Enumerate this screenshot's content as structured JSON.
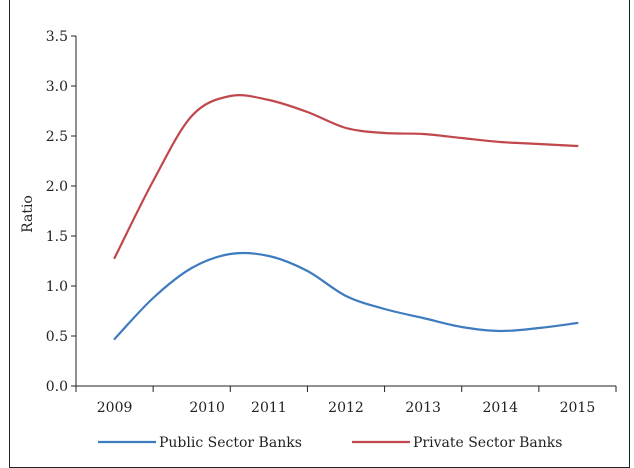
{
  "chart_data": {
    "type": "line",
    "title": "",
    "xlabel": "",
    "ylabel": "Ratio",
    "categories": [
      "2009",
      "2010",
      "2011",
      "2012",
      "2013",
      "2014",
      "2015"
    ],
    "x_positions": [
      0,
      1.2,
      2.0,
      3.0,
      4.0,
      5.0,
      6.0
    ],
    "ylim": [
      0.0,
      3.5
    ],
    "yticks": [
      "0.0",
      "0.5",
      "1.0",
      "1.5",
      "2.0",
      "2.5",
      "3.0",
      "3.5"
    ],
    "grid": false,
    "legend_position": "bottom",
    "series": [
      {
        "name": "Public Sector Banks",
        "color": "#3e7bbf",
        "points": [
          [
            0,
            0.47
          ],
          [
            0.5,
            0.88
          ],
          [
            1.0,
            1.18
          ],
          [
            1.5,
            1.32
          ],
          [
            2.0,
            1.3
          ],
          [
            2.5,
            1.15
          ],
          [
            3.0,
            0.9
          ],
          [
            3.5,
            0.77
          ],
          [
            4.0,
            0.68
          ],
          [
            4.5,
            0.59
          ],
          [
            5.0,
            0.55
          ],
          [
            5.5,
            0.58
          ],
          [
            6.0,
            0.63
          ]
        ]
      },
      {
        "name": "Private Sector Banks",
        "color": "#c0474c",
        "points": [
          [
            0,
            1.28
          ],
          [
            0.5,
            2.05
          ],
          [
            1.0,
            2.7
          ],
          [
            1.5,
            2.9
          ],
          [
            2.0,
            2.86
          ],
          [
            2.5,
            2.74
          ],
          [
            3.0,
            2.58
          ],
          [
            3.5,
            2.53
          ],
          [
            4.0,
            2.52
          ],
          [
            4.5,
            2.48
          ],
          [
            5.0,
            2.44
          ],
          [
            5.5,
            2.42
          ],
          [
            6.0,
            2.4
          ]
        ]
      }
    ]
  }
}
